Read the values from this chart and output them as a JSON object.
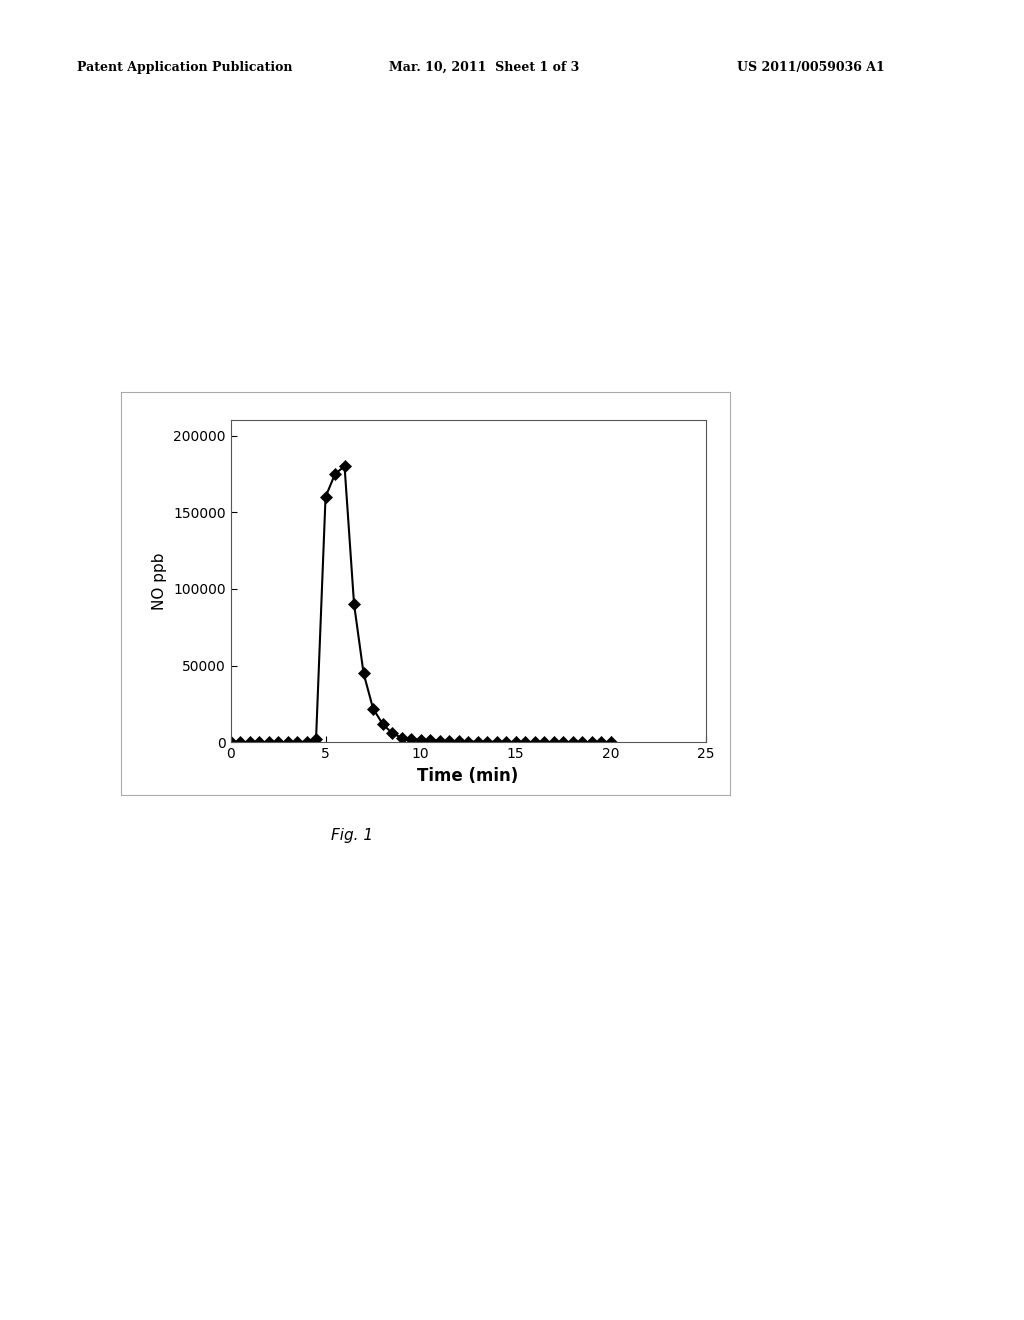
{
  "x": [
    0,
    0.5,
    1,
    1.5,
    2,
    2.5,
    3,
    3.5,
    4,
    4.5,
    5,
    5.5,
    6,
    6.5,
    7,
    7.5,
    8,
    8.5,
    9,
    9.5,
    10,
    10.5,
    11,
    11.5,
    12,
    12.5,
    13,
    13.5,
    14,
    14.5,
    15,
    15.5,
    16,
    16.5,
    17,
    17.5,
    18,
    18.5,
    19,
    19.5,
    20
  ],
  "y": [
    0,
    0,
    0,
    0,
    0,
    0,
    0,
    0,
    500,
    2000,
    160000,
    175000,
    180000,
    90000,
    45000,
    22000,
    12000,
    6000,
    3000,
    2000,
    1500,
    1200,
    1000,
    800,
    600,
    500,
    400,
    350,
    300,
    250,
    200,
    180,
    150,
    130,
    110,
    100,
    90,
    80,
    70,
    60,
    50
  ],
  "xlabel": "Time (min)",
  "ylabel": "NO ppb",
  "xlim": [
    0,
    25
  ],
  "ylim": [
    0,
    210000
  ],
  "xticks": [
    0,
    5,
    10,
    15,
    20,
    25
  ],
  "yticks": [
    0,
    50000,
    100000,
    150000,
    200000
  ],
  "fig_caption": "Fig. 1",
  "header_left": "Patent Application Publication",
  "header_center": "Mar. 10, 2011  Sheet 1 of 3",
  "header_right": "US 2011/0059036 A1",
  "marker_color": "#000000",
  "line_color": "#000000",
  "bg_color": "#ffffff",
  "plot_bg_color": "#ffffff",
  "marker": "D",
  "markersize": 6,
  "linewidth": 1.5,
  "xlabel_fontsize": 12,
  "ylabel_fontsize": 11,
  "tick_fontsize": 10,
  "caption_fontsize": 11,
  "header_fontsize": 9
}
